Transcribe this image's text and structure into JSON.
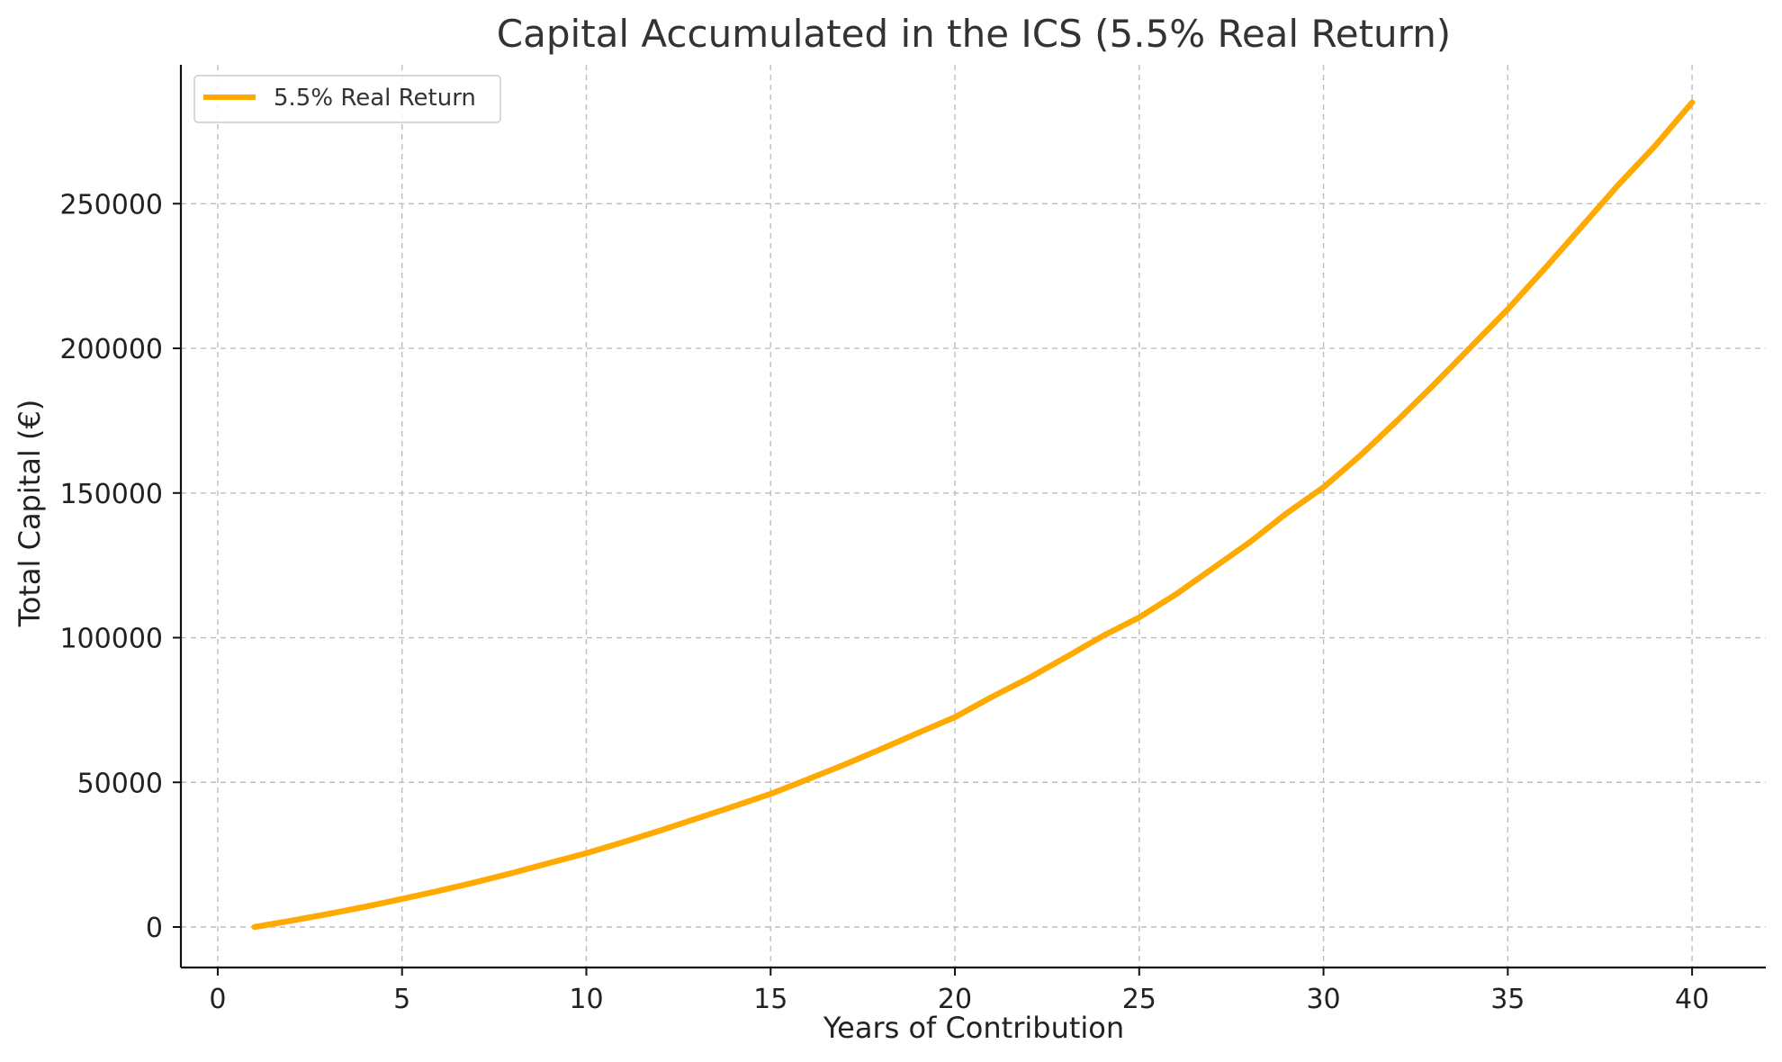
{
  "chart_data": {
    "type": "line",
    "title": "Capital Accumulated in the ICS (5.5% Real Return)",
    "xlabel": "Years of Contribution",
    "ylabel": "Total Capital (€)",
    "xlim": [
      -1,
      42
    ],
    "ylim": [
      -14000,
      298000
    ],
    "xticks": [
      0,
      5,
      10,
      15,
      20,
      25,
      30,
      35,
      40
    ],
    "yticks": [
      0,
      50000,
      100000,
      150000,
      200000,
      250000
    ],
    "grid": true,
    "legend_position": "top-left",
    "series": [
      {
        "name": "5.5% Real Return",
        "color": "#FFAA00",
        "x": [
          1,
          2,
          3,
          4,
          5,
          6,
          7,
          8,
          9,
          10,
          11,
          12,
          13,
          14,
          15,
          16,
          17,
          18,
          19,
          20,
          21,
          22,
          23,
          24,
          25,
          26,
          27,
          28,
          29,
          30,
          31,
          32,
          33,
          34,
          35,
          36,
          37,
          38,
          39,
          40
        ],
        "y": [
          0,
          2200,
          4500,
          7000,
          9700,
          12500,
          15500,
          18700,
          22100,
          25500,
          29300,
          33300,
          37500,
          41700,
          46000,
          51000,
          56100,
          61500,
          67100,
          72500,
          79500,
          86000,
          93200,
          100500,
          107000,
          115000,
          124000,
          133000,
          143000,
          152000,
          163000,
          175000,
          187500,
          200500,
          213500,
          227500,
          242000,
          256500,
          270000,
          285000
        ]
      }
    ]
  }
}
